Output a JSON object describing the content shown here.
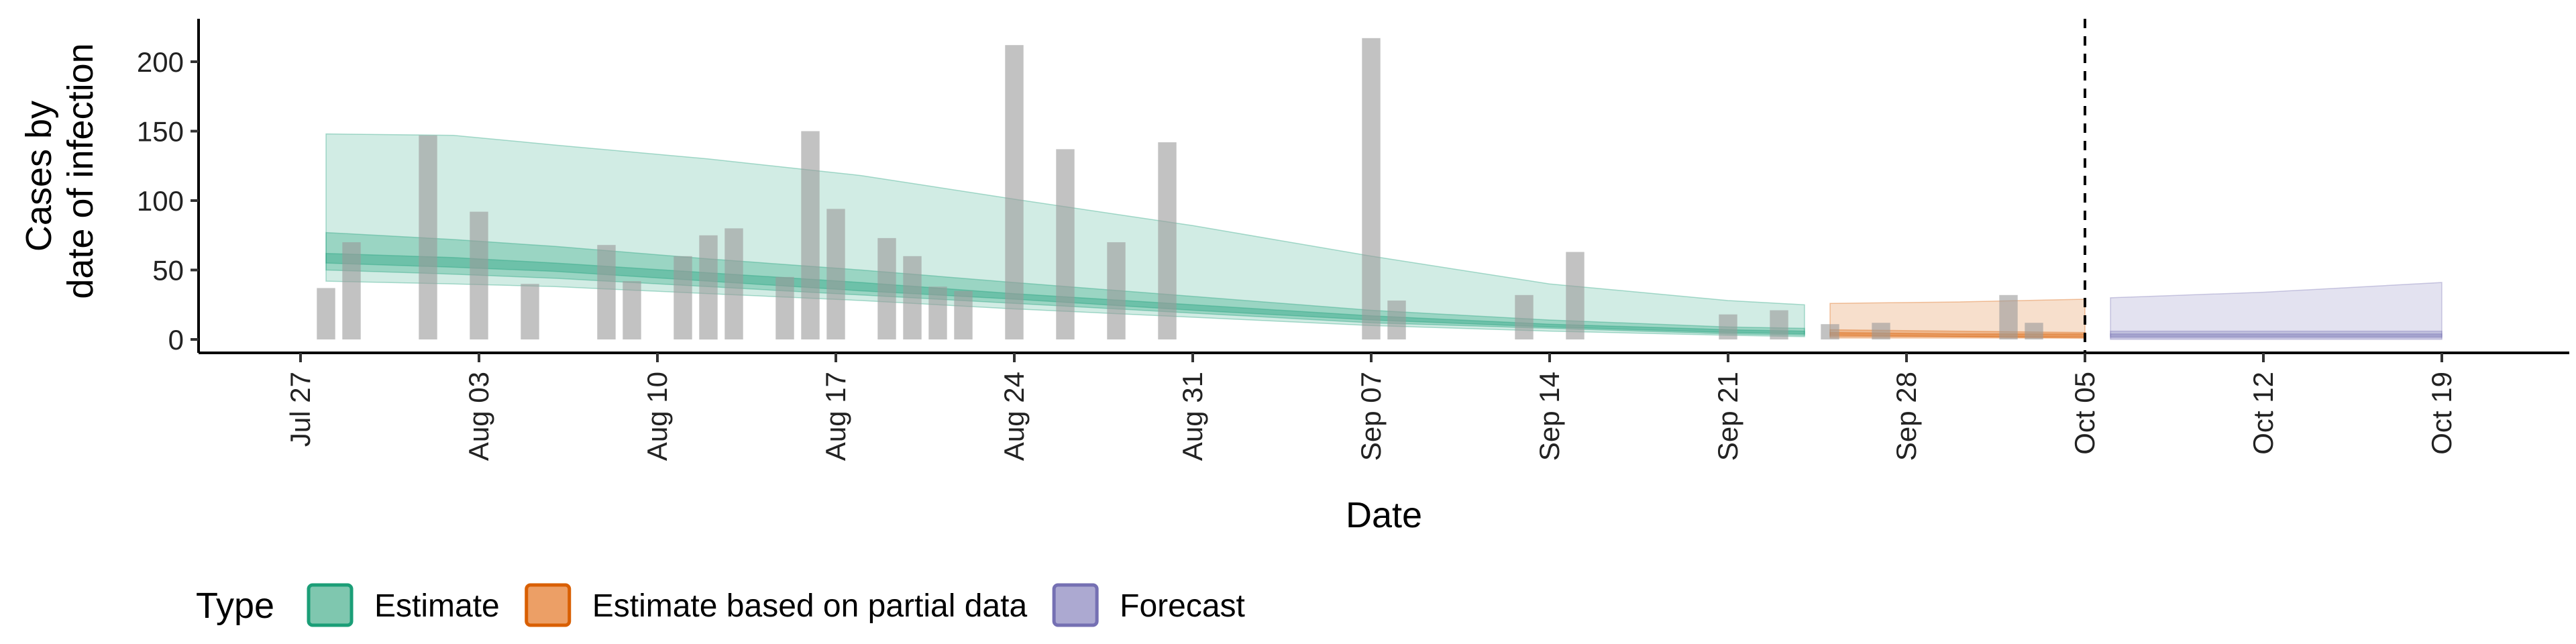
{
  "chart_data": {
    "type": "bar",
    "xlabel": "Date",
    "ylabel_lines": [
      "Cases by",
      "date of infection"
    ],
    "ylim": [
      0,
      230
    ],
    "yticks": [
      0,
      50,
      100,
      150,
      200
    ],
    "x_tick_labels": [
      "Jul 27",
      "Aug 03",
      "Aug 10",
      "Aug 17",
      "Aug 24",
      "Aug 31",
      "Sep 07",
      "Sep 14",
      "Sep 21",
      "Sep 28",
      "Oct 05",
      "Oct 12",
      "Oct 19"
    ],
    "x_tick_dates": [
      "2020-07-27",
      "2020-08-03",
      "2020-08-10",
      "2020-08-17",
      "2020-08-24",
      "2020-08-31",
      "2020-09-07",
      "2020-09-14",
      "2020-09-21",
      "2020-09-28",
      "2020-10-05",
      "2020-10-12",
      "2020-10-19"
    ],
    "x_range": [
      "2020-07-23",
      "2020-10-24"
    ],
    "vline_date": "2020-10-05",
    "bar_color": "#999999",
    "bars": [
      {
        "date": "2020-07-28",
        "value": 37
      },
      {
        "date": "2020-07-29",
        "value": 70
      },
      {
        "date": "2020-08-01",
        "value": 147
      },
      {
        "date": "2020-08-03",
        "value": 92
      },
      {
        "date": "2020-08-05",
        "value": 40
      },
      {
        "date": "2020-08-08",
        "value": 68
      },
      {
        "date": "2020-08-09",
        "value": 42
      },
      {
        "date": "2020-08-11",
        "value": 60
      },
      {
        "date": "2020-08-12",
        "value": 75
      },
      {
        "date": "2020-08-13",
        "value": 80
      },
      {
        "date": "2020-08-15",
        "value": 45
      },
      {
        "date": "2020-08-16",
        "value": 150
      },
      {
        "date": "2020-08-17",
        "value": 94
      },
      {
        "date": "2020-08-19",
        "value": 73
      },
      {
        "date": "2020-08-20",
        "value": 60
      },
      {
        "date": "2020-08-21",
        "value": 38
      },
      {
        "date": "2020-08-22",
        "value": 35
      },
      {
        "date": "2020-08-24",
        "value": 212
      },
      {
        "date": "2020-08-26",
        "value": 137
      },
      {
        "date": "2020-08-28",
        "value": 70
      },
      {
        "date": "2020-08-30",
        "value": 142
      },
      {
        "date": "2020-09-07",
        "value": 217
      },
      {
        "date": "2020-09-08",
        "value": 28
      },
      {
        "date": "2020-09-13",
        "value": 32
      },
      {
        "date": "2020-09-15",
        "value": 63
      },
      {
        "date": "2020-09-21",
        "value": 18
      },
      {
        "date": "2020-09-23",
        "value": 21
      },
      {
        "date": "2020-09-25",
        "value": 11
      },
      {
        "date": "2020-09-27",
        "value": 12
      },
      {
        "date": "2020-10-02",
        "value": 32
      },
      {
        "date": "2020-10-03",
        "value": 12
      }
    ],
    "series": [
      {
        "name": "Estimate",
        "color": "#1B9E77",
        "points": [
          {
            "date": "2020-07-28",
            "lo90": 42,
            "lo50": 50,
            "lo20": 55,
            "median": 58,
            "hi20": 62,
            "hi50": 77,
            "hi90": 148
          },
          {
            "date": "2020-08-02",
            "lo90": 40,
            "lo50": 47,
            "lo20": 52,
            "median": 55,
            "hi20": 59,
            "hi50": 72,
            "hi90": 147
          },
          {
            "date": "2020-08-06",
            "lo90": 38,
            "lo50": 44,
            "lo20": 49,
            "median": 52,
            "hi20": 55,
            "hi50": 67,
            "hi90": 140
          },
          {
            "date": "2020-08-12",
            "lo90": 33,
            "lo50": 38,
            "lo20": 42,
            "median": 45,
            "hi20": 48,
            "hi50": 58,
            "hi90": 130
          },
          {
            "date": "2020-08-18",
            "lo90": 28,
            "lo50": 32,
            "lo20": 35,
            "median": 38,
            "hi20": 41,
            "hi50": 50,
            "hi90": 118
          },
          {
            "date": "2020-08-24",
            "lo90": 22,
            "lo50": 26,
            "lo20": 29,
            "median": 31,
            "hi20": 33,
            "hi50": 41,
            "hi90": 101
          },
          {
            "date": "2020-08-31",
            "lo90": 16,
            "lo50": 19,
            "lo20": 21,
            "median": 23,
            "hi20": 25,
            "hi50": 31,
            "hi90": 82
          },
          {
            "date": "2020-09-07",
            "lo90": 10,
            "lo50": 12,
            "lo20": 14,
            "median": 15,
            "hi20": 17,
            "hi50": 21,
            "hi90": 60
          },
          {
            "date": "2020-09-14",
            "lo90": 6,
            "lo50": 8,
            "lo20": 9,
            "median": 10,
            "hi20": 11,
            "hi50": 14,
            "hi90": 40
          },
          {
            "date": "2020-09-21",
            "lo90": 3,
            "lo50": 4,
            "lo20": 5,
            "median": 6,
            "hi20": 7,
            "hi50": 9,
            "hi90": 28
          },
          {
            "date": "2020-09-24",
            "lo90": 2,
            "lo50": 3,
            "lo20": 4,
            "median": 5,
            "hi20": 6,
            "hi50": 8,
            "hi90": 25
          }
        ]
      },
      {
        "name": "Estimate based on partial data",
        "color": "#D95F02",
        "points": [
          {
            "date": "2020-09-25",
            "lo90": 1,
            "lo50": 2,
            "lo20": 3,
            "median": 4,
            "hi20": 5,
            "hi50": 7,
            "hi90": 26
          },
          {
            "date": "2020-09-30",
            "lo90": 1,
            "lo50": 2,
            "lo20": 2,
            "median": 3,
            "hi20": 4,
            "hi50": 6,
            "hi90": 27
          },
          {
            "date": "2020-10-05",
            "lo90": 1,
            "lo50": 1,
            "lo20": 2,
            "median": 3,
            "hi20": 4,
            "hi50": 5,
            "hi90": 29
          }
        ]
      },
      {
        "name": "Forecast",
        "color": "#7570B3",
        "points": [
          {
            "date": "2020-10-06",
            "lo90": 0,
            "lo50": 1,
            "lo20": 2,
            "median": 3,
            "hi20": 4,
            "hi50": 6,
            "hi90": 30
          },
          {
            "date": "2020-10-12",
            "lo90": 0,
            "lo50": 1,
            "lo20": 2,
            "median": 3,
            "hi20": 4,
            "hi50": 6,
            "hi90": 34
          },
          {
            "date": "2020-10-19",
            "lo90": 0,
            "lo50": 1,
            "lo20": 2,
            "median": 3,
            "hi20": 4,
            "hi50": 6,
            "hi90": 41
          }
        ]
      }
    ],
    "legend": {
      "title": "Type",
      "placement": "bottom-left",
      "items": [
        {
          "label": "Estimate",
          "fill": "#7FC7AF",
          "stroke": "#1B9E77"
        },
        {
          "label": "Estimate based on partial data",
          "fill": "#EC9F66",
          "stroke": "#D95F02"
        },
        {
          "label": "Forecast",
          "fill": "#ACA9D1",
          "stroke": "#7570B3"
        }
      ]
    }
  }
}
